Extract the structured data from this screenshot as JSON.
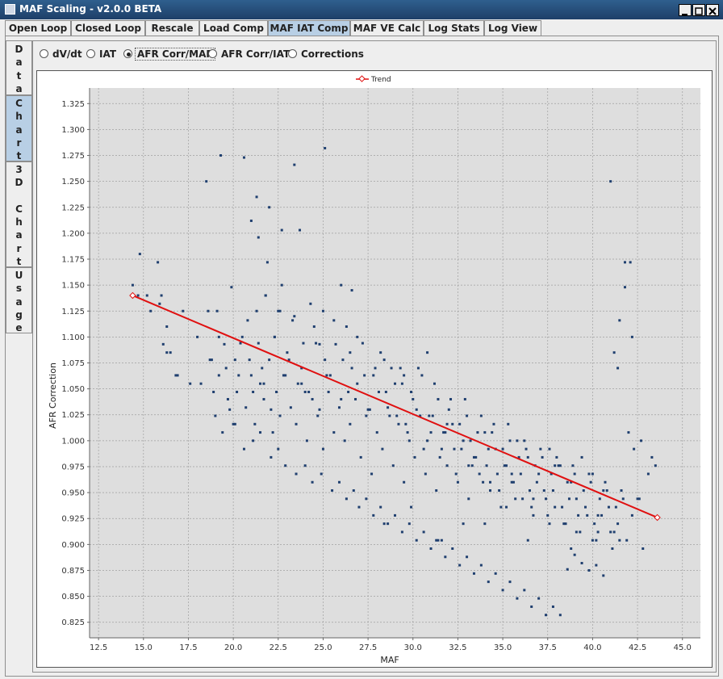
{
  "window": {
    "title": "MAF Scaling - v2.0.0 BETA"
  },
  "tabs": [
    "Open Loop",
    "Closed Loop",
    "Rescale",
    "Load Comp",
    "MAF IAT Comp",
    "MAF VE Calc",
    "Log Stats",
    "Log View"
  ],
  "selected_tab": "MAF IAT Comp",
  "side_tabs": [
    {
      "label": "Data",
      "chars": [
        "D",
        "a",
        "t",
        "a"
      ],
      "selected": false
    },
    {
      "label": "Chart",
      "chars": [
        "C",
        "h",
        "a",
        "r",
        "t"
      ],
      "selected": true
    },
    {
      "label": "3D Chart",
      "chars": [
        "3",
        "D",
        "",
        "C",
        "h",
        "a",
        "r",
        "t"
      ],
      "selected": false
    },
    {
      "label": "Usage",
      "chars": [
        "U",
        "s",
        "a",
        "g",
        "e"
      ],
      "selected": false
    }
  ],
  "radios": [
    {
      "label": "dV/dt",
      "selected": false
    },
    {
      "label": "IAT",
      "selected": false
    },
    {
      "label": "AFR Corr/MAF",
      "selected": true
    },
    {
      "label": "AFR Corr/IAT",
      "selected": false
    },
    {
      "label": "Corrections",
      "selected": false
    }
  ],
  "chart_data": {
    "type": "scatter",
    "xlabel": "MAF",
    "ylabel": "AFR Correction",
    "xlim": [
      12,
      46
    ],
    "ylim": [
      0.81,
      1.34
    ],
    "xticks": [
      "12.5",
      "15.0",
      "17.5",
      "20.0",
      "22.5",
      "25.0",
      "27.5",
      "30.0",
      "32.5",
      "35.0",
      "37.5",
      "40.0",
      "42.5",
      "45.0"
    ],
    "yticks": [
      "0.825",
      "0.850",
      "0.875",
      "0.900",
      "0.925",
      "0.950",
      "0.975",
      "1.000",
      "1.025",
      "1.050",
      "1.075",
      "1.100",
      "1.125",
      "1.150",
      "1.175",
      "1.200",
      "1.225",
      "1.250",
      "1.275",
      "1.300",
      "1.325"
    ],
    "grid": true,
    "legend": {
      "position": "top-center",
      "entries": [
        "Trend"
      ]
    },
    "colors": {
      "points": "#1f3f6f",
      "trend": "#e01010",
      "plot_bg": "#dedede",
      "grid": "#a0a0a0"
    },
    "trend": {
      "name": "Trend",
      "x": [
        14.4,
        43.6
      ],
      "y": [
        1.14,
        0.926
      ]
    },
    "points": {
      "x": [
        14.4,
        14.8,
        15.2,
        15.8,
        16.1,
        16.3,
        16.9,
        17.2,
        17.6,
        18.5,
        18.8,
        19.3,
        19.6,
        20.6,
        21.0,
        21.3,
        21.4,
        21.9,
        22.0,
        22.7,
        23.4,
        23.7,
        24.8,
        25.1,
        26.0,
        26.6,
        14.7,
        15.4,
        15.9,
        16.0,
        16.3,
        16.5,
        16.8,
        18.0,
        18.2,
        18.7,
        18.9,
        19.2,
        19.5,
        19.8,
        20.1,
        20.3,
        20.5,
        20.8,
        21.1,
        21.4,
        21.6,
        21.8,
        22.1,
        22.3,
        22.5,
        22.8,
        23.1,
        23.3,
        23.6,
        23.9,
        24.2,
        24.5,
        24.8,
        25.1,
        25.4,
        25.7,
        26.0,
        26.3,
        26.6,
        26.9,
        27.2,
        27.5,
        27.8,
        28.1,
        28.4,
        28.7,
        29.0,
        29.3,
        29.6,
        29.9,
        30.2,
        30.5,
        30.8,
        31.1,
        31.4,
        31.7,
        32.0,
        32.3,
        32.6,
        32.9,
        33.2,
        33.5,
        33.8,
        34.1,
        34.4,
        34.7,
        35.0,
        35.3,
        35.6,
        35.9,
        36.2,
        36.5,
        36.8,
        37.1,
        37.4,
        37.7,
        38.0,
        38.3,
        38.6,
        38.9,
        39.2,
        39.5,
        39.8,
        40.1,
        40.4,
        40.7,
        41.0,
        41.3,
        41.6,
        41.9,
        42.2,
        42.5,
        42.8,
        43.1,
        43.5,
        19.0,
        19.4,
        19.7,
        20.0,
        20.2,
        20.7,
        21.0,
        21.2,
        21.5,
        21.7,
        22.0,
        22.2,
        22.4,
        22.6,
        22.9,
        23.2,
        23.5,
        23.8,
        24.1,
        24.4,
        24.7,
        25.0,
        25.3,
        25.6,
        25.9,
        26.2,
        26.5,
        26.8,
        27.1,
        27.4,
        27.7,
        28.0,
        28.3,
        28.6,
        28.9,
        29.2,
        29.5,
        29.8,
        30.1,
        30.4,
        30.7,
        31.0,
        31.3,
        31.6,
        31.9,
        32.2,
        32.5,
        32.8,
        33.1,
        33.4,
        33.7,
        34.0,
        34.3,
        34.6,
        34.9,
        35.2,
        35.5,
        35.8,
        36.1,
        36.4,
        36.7,
        37.0,
        37.3,
        37.6,
        37.9,
        38.2,
        38.5,
        38.8,
        39.1,
        39.4,
        39.7,
        40.0,
        40.3,
        40.6,
        40.9,
        41.2,
        41.5,
        41.8,
        42.1,
        19.1,
        19.9,
        20.4,
        20.9,
        21.3,
        21.8,
        22.3,
        22.7,
        23.0,
        23.4,
        23.8,
        24.3,
        24.6,
        25.2,
        25.6,
        26.1,
        26.4,
        26.9,
        27.3,
        27.6,
        28.2,
        28.5,
        28.8,
        29.1,
        29.4,
        29.7,
        30.0,
        30.3,
        30.6,
        30.9,
        31.2,
        31.5,
        31.8,
        32.1,
        32.4,
        32.7,
        33.0,
        33.3,
        33.6,
        33.9,
        34.2,
        34.5,
        34.8,
        35.1,
        35.4,
        35.7,
        36.0,
        36.3,
        36.6,
        36.9,
        37.2,
        37.5,
        37.8,
        38.1,
        38.4,
        38.7,
        39.0,
        39.3,
        39.6,
        39.9,
        40.2,
        40.5,
        40.8,
        41.1,
        41.4,
        41.7,
        42.0,
        42.3,
        42.7,
        43.3,
        20.1,
        20.6,
        21.1,
        21.5,
        22.1,
        22.5,
        22.9,
        23.5,
        24.0,
        24.4,
        24.9,
        25.5,
        25.9,
        26.3,
        26.7,
        27.0,
        27.4,
        27.8,
        28.2,
        28.6,
        29.0,
        29.4,
        29.8,
        30.2,
        30.6,
        31.0,
        31.4,
        31.8,
        32.2,
        32.6,
        33.0,
        33.4,
        33.8,
        34.2,
        34.6,
        35.0,
        35.4,
        35.8,
        36.2,
        36.6,
        37.0,
        37.4,
        37.8,
        38.2,
        38.6,
        39.0,
        39.4,
        39.8,
        40.2,
        40.6,
        41.0,
        41.4,
        41.8,
        42.2,
        18.6,
        19.2,
        21.7,
        22.6,
        24.0,
        25.0,
        26.5,
        27.9,
        29.5,
        30.8,
        31.9,
        33.1,
        34.3,
        35.5,
        36.7,
        37.9,
        39.1,
        40.3,
        41.5,
        42.6,
        28.4,
        29.9,
        31.3,
        32.8,
        35.2,
        37.6,
        40.0,
        41.2,
        31.6,
        34.0,
        36.4,
        38.8
      ],
      "y": [
        1.15,
        1.18,
        1.14,
        1.172,
        1.093,
        1.085,
        1.063,
        1.125,
        1.055,
        1.25,
        1.078,
        1.275,
        1.07,
        1.273,
        1.212,
        1.235,
        1.196,
        1.172,
        1.225,
        1.203,
        1.266,
        1.203,
        1.093,
        1.282,
        1.15,
        1.145,
        1.14,
        1.125,
        1.132,
        1.14,
        1.11,
        1.085,
        1.063,
        1.1,
        1.055,
        1.078,
        1.047,
        1.063,
        1.093,
        1.03,
        1.078,
        1.063,
        1.1,
        1.116,
        1.047,
        1.094,
        1.07,
        1.14,
        1.03,
        1.1,
        1.125,
        1.063,
        1.078,
        1.116,
        1.055,
        1.094,
        1.047,
        1.11,
        1.03,
        1.078,
        1.063,
        1.093,
        1.04,
        1.11,
        1.07,
        1.055,
        1.094,
        1.03,
        1.063,
        1.047,
        1.078,
        1.024,
        1.055,
        1.07,
        1.016,
        1.047,
        1.03,
        1.063,
        1.0,
        1.024,
        1.04,
        1.008,
        1.03,
        0.992,
        1.016,
        1.04,
        1.0,
        0.984,
        1.024,
        0.976,
        1.008,
        0.968,
        0.992,
        1.016,
        0.96,
        0.984,
        1.0,
        0.952,
        0.976,
        0.992,
        0.944,
        0.968,
        0.984,
        0.936,
        0.96,
        0.976,
        0.928,
        0.952,
        0.968,
        0.92,
        0.944,
        0.96,
        0.912,
        0.936,
        0.952,
        0.904,
        0.928,
        0.944,
        0.896,
        0.968,
        0.976,
        1.024,
        1.008,
        1.04,
        1.016,
        1.047,
        1.032,
        1.063,
        1.016,
        1.055,
        1.04,
        1.078,
        1.008,
        1.047,
        1.024,
        1.063,
        1.032,
        1.016,
        1.055,
        1.0,
        1.04,
        1.024,
        0.992,
        1.047,
        1.008,
        1.032,
        1.0,
        1.016,
        1.04,
        0.984,
        1.024,
        0.968,
        1.008,
        0.992,
        1.032,
        0.976,
        1.016,
        0.96,
        1.0,
        0.984,
        1.024,
        0.968,
        1.008,
        0.952,
        0.992,
        0.976,
        1.016,
        0.96,
        1.0,
        0.944,
        0.984,
        0.968,
        1.008,
        0.952,
        0.992,
        0.936,
        0.976,
        0.96,
        1.0,
        0.944,
        0.984,
        0.928,
        0.968,
        0.952,
        0.992,
        0.936,
        0.976,
        0.92,
        0.96,
        0.944,
        0.984,
        0.928,
        0.968,
        0.912,
        0.952,
        0.936,
        1.085,
        1.116,
        1.148,
        1.172,
        1.125,
        1.148,
        1.094,
        1.078,
        1.125,
        1.14,
        1.1,
        1.15,
        1.085,
        1.12,
        1.07,
        1.132,
        1.094,
        1.063,
        1.116,
        1.078,
        1.047,
        1.1,
        1.063,
        1.03,
        1.085,
        1.047,
        1.07,
        1.024,
        1.055,
        1.008,
        1.04,
        1.07,
        0.992,
        1.024,
        1.055,
        0.984,
        1.008,
        1.04,
        0.968,
        0.992,
        1.024,
        0.976,
        1.008,
        0.96,
        0.992,
        1.016,
        0.952,
        0.976,
        1.0,
        0.944,
        0.968,
        0.992,
        0.936,
        0.96,
        0.984,
        0.928,
        0.952,
        0.976,
        0.92,
        0.944,
        0.968,
        0.912,
        0.936,
        0.96,
        0.904,
        0.928,
        0.952,
        0.896,
        0.92,
        0.944,
        1.008,
        0.992,
        1.0,
        0.984,
        1.016,
        0.992,
        1.0,
        1.008,
        0.984,
        0.992,
        0.976,
        0.968,
        0.976,
        0.96,
        0.968,
        0.952,
        0.96,
        0.944,
        0.952,
        0.936,
        0.944,
        0.928,
        0.936,
        0.92,
        0.928,
        0.912,
        0.92,
        0.904,
        0.912,
        0.896,
        0.904,
        0.888,
        0.896,
        0.88,
        0.888,
        0.872,
        0.88,
        0.864,
        0.872,
        0.856,
        0.864,
        0.848,
        0.856,
        0.84,
        0.848,
        0.832,
        0.84,
        0.832,
        0.876,
        0.89,
        0.882,
        0.875,
        0.88,
        0.87,
        1.25,
        1.07,
        1.172,
        1.1,
        1.125,
        1.1,
        1.055,
        1.125,
        1.047,
        1.125,
        1.085,
        1.07,
        1.063,
        1.085,
        1.016,
        0.976,
        0.96,
        0.968,
        0.944,
        0.976,
        0.912,
        0.928,
        0.904,
        0.944,
        0.92,
        0.936,
        0.904,
        0.92,
        0.936,
        0.92,
        0.904,
        0.912,
        0.904,
        0.92,
        0.904,
        0.896
      ]
    }
  }
}
